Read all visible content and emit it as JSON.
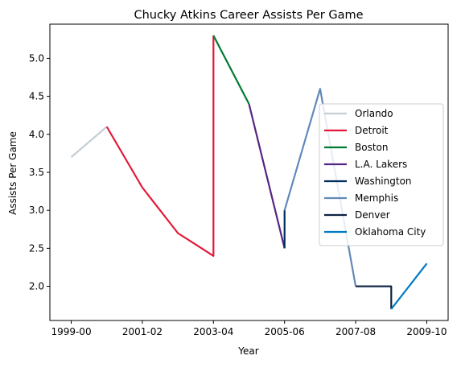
{
  "chart_data": {
    "type": "line",
    "title": "Chucky Atkins Career Assists Per Game",
    "xlabel": "Year",
    "ylabel": "Assists Per Game",
    "x_ticks": [
      "1999-00",
      "2001-02",
      "2003-04",
      "2005-06",
      "2007-08",
      "2009-10"
    ],
    "y_ticks": [
      "2.0",
      "2.5",
      "3.0",
      "3.5",
      "4.0",
      "4.5",
      "5.0"
    ],
    "xlim": [
      "1999-00",
      "2009-10"
    ],
    "ylim": [
      1.55,
      5.45
    ],
    "grid": false,
    "legend": "center-right",
    "series": [
      {
        "name": "Orlando",
        "color": "#c4ced4",
        "x": [
          "1999-00",
          "2000-01"
        ],
        "y": [
          3.7,
          4.1
        ]
      },
      {
        "name": "Detroit",
        "color": "#e31837",
        "x": [
          "2000-01",
          "2001-02",
          "2002-03",
          "2003-04",
          "2003-04"
        ],
        "y": [
          4.1,
          3.3,
          2.7,
          2.4,
          5.3
        ]
      },
      {
        "name": "Boston",
        "color": "#007a33",
        "x": [
          "2003-04",
          "2004-05"
        ],
        "y": [
          5.3,
          4.4
        ]
      },
      {
        "name": "L.A. Lakers",
        "color": "#552583",
        "x": [
          "2004-05",
          "2005-06"
        ],
        "y": [
          4.4,
          2.5
        ]
      },
      {
        "name": "Washington",
        "color": "#002b5c",
        "x": [
          "2005-06",
          "2005-06"
        ],
        "y": [
          2.5,
          3.0
        ]
      },
      {
        "name": "Memphis",
        "color": "#6189b9",
        "x": [
          "2005-06",
          "2006-07",
          "2007-08"
        ],
        "y": [
          3.0,
          4.6,
          2.0
        ]
      },
      {
        "name": "Denver",
        "color": "#0e2240",
        "x": [
          "2007-08",
          "2008-09",
          "2008-09"
        ],
        "y": [
          2.0,
          2.0,
          1.7
        ]
      },
      {
        "name": "Oklahoma City",
        "color": "#007ac1",
        "x": [
          "2008-09",
          "2009-10"
        ],
        "y": [
          1.7,
          2.3
        ]
      }
    ]
  }
}
